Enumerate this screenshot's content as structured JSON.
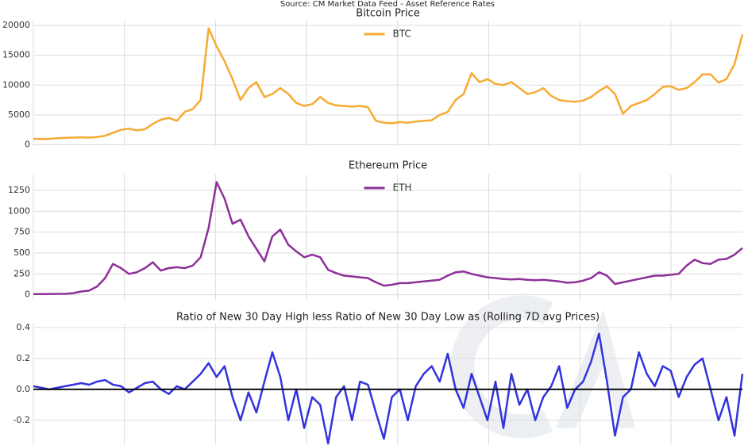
{
  "title": "Source: CM Market Data Feed - Asset Reference Rates",
  "chart_data": [
    {
      "type": "line",
      "title": "Bitcoin Price",
      "legend": "upper center",
      "grid": true,
      "ylim": [
        -200,
        20800
      ],
      "yticks": [
        0,
        5000,
        10000,
        15000,
        20000
      ],
      "series": [
        {
          "name": "BTC",
          "color": "#f6ab33",
          "values": [
            1000,
            950,
            1000,
            1100,
            1150,
            1200,
            1250,
            1200,
            1300,
            1500,
            2000,
            2500,
            2700,
            2400,
            2600,
            3500,
            4200,
            4500,
            4000,
            5500,
            6000,
            7500,
            19500,
            16500,
            14000,
            11000,
            7500,
            9500,
            10500,
            8000,
            8500,
            9500,
            8500,
            7000,
            6500,
            6800,
            8000,
            7000,
            6600,
            6500,
            6400,
            6500,
            6300,
            4000,
            3700,
            3600,
            3800,
            3700,
            3900,
            4000,
            4100,
            5000,
            5500,
            7500,
            8500,
            12000,
            10500,
            11000,
            10200,
            10000,
            10500,
            9500,
            8500,
            8800,
            9500,
            8200,
            7500,
            7300,
            7200,
            7400,
            8000,
            9000,
            9800,
            8500,
            5200,
            6500,
            7000,
            7500,
            8500,
            9700,
            9800,
            9200,
            9500,
            10500,
            11800,
            11800,
            10400,
            11000,
            13500,
            18500
          ]
        }
      ]
    },
    {
      "type": "line",
      "title": "Ethereum Price",
      "legend": "upper center",
      "grid": true,
      "ylim": [
        -60,
        1440
      ],
      "yticks": [
        0,
        250,
        500,
        750,
        1000,
        1250
      ],
      "series": [
        {
          "name": "ETH",
          "color": "#8e2f9a",
          "values": [
            8,
            9,
            10,
            11,
            12,
            20,
            40,
            50,
            100,
            200,
            370,
            320,
            250,
            270,
            320,
            390,
            290,
            320,
            330,
            320,
            350,
            450,
            800,
            1350,
            1150,
            850,
            900,
            700,
            550,
            400,
            700,
            780,
            600,
            520,
            450,
            480,
            450,
            300,
            260,
            230,
            220,
            210,
            200,
            150,
            110,
            120,
            140,
            140,
            150,
            160,
            170,
            180,
            230,
            270,
            280,
            250,
            230,
            210,
            200,
            190,
            185,
            190,
            180,
            175,
            180,
            170,
            160,
            145,
            150,
            170,
            200,
            270,
            230,
            130,
            150,
            170,
            190,
            210,
            230,
            230,
            240,
            250,
            350,
            420,
            380,
            370,
            420,
            430,
            480,
            560
          ]
        }
      ]
    },
    {
      "type": "line",
      "title": "Ratio of New 30 Day High less Ratio of New 30  Day Low as (Rolling 7D avg Prices)",
      "grid": true,
      "ylim": [
        -0.36,
        0.425
      ],
      "yticks": [
        -0.2,
        {
          "value": 0,
          "label": "0.0"
        },
        0.2,
        0.4
      ],
      "hline": 0,
      "hline_color": "#000000",
      "series": [
        {
          "color": "#3333dd",
          "values": [
            0.02,
            0.01,
            0.0,
            0.01,
            0.02,
            0.03,
            0.04,
            0.03,
            0.05,
            0.06,
            0.03,
            0.02,
            -0.02,
            0.01,
            0.04,
            0.05,
            0.0,
            -0.03,
            0.02,
            0.0,
            0.05,
            0.1,
            0.17,
            0.08,
            0.15,
            -0.05,
            -0.2,
            -0.02,
            -0.15,
            0.05,
            0.24,
            0.08,
            -0.2,
            0.0,
            -0.25,
            -0.05,
            -0.1,
            -0.35,
            -0.05,
            0.02,
            -0.2,
            0.05,
            0.03,
            -0.15,
            -0.32,
            -0.05,
            0.0,
            -0.2,
            0.02,
            0.1,
            0.15,
            0.05,
            0.23,
            0.0,
            -0.12,
            0.1,
            -0.05,
            -0.2,
            0.05,
            -0.25,
            0.1,
            -0.1,
            0.0,
            -0.2,
            -0.05,
            0.02,
            0.15,
            -0.12,
            0.0,
            0.05,
            0.18,
            0.36,
            0.05,
            -0.3,
            -0.05,
            0.0,
            0.24,
            0.1,
            0.02,
            0.15,
            0.12,
            -0.05,
            0.08,
            0.16,
            0.2,
            0.0,
            -0.2,
            -0.05,
            -0.3,
            0.1
          ]
        }
      ]
    }
  ]
}
